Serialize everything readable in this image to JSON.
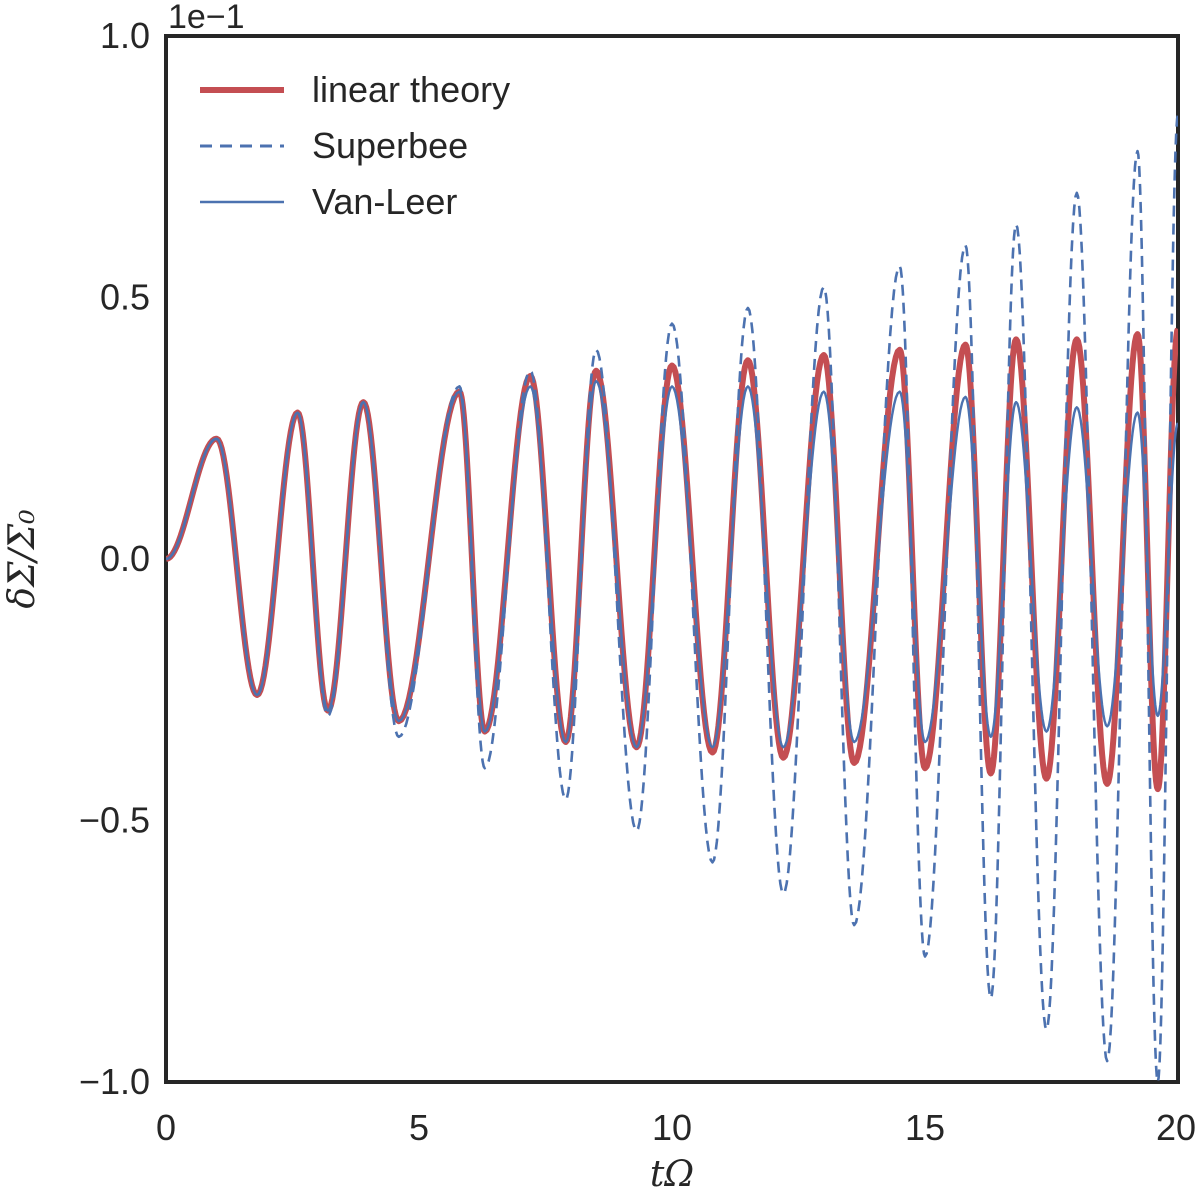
{
  "chart_data": {
    "type": "line",
    "title": "",
    "xlabel": "tΩ",
    "ylabel": "δΣ/Σ₀",
    "xlim": [
      0,
      20
    ],
    "ylim": [
      -1.0,
      1.0
    ],
    "y_offset_text": "1e−1",
    "xticks": [
      0,
      5,
      10,
      15,
      20
    ],
    "xtick_labels": [
      "0",
      "5",
      "10",
      "15",
      "20"
    ],
    "yticks": [
      -1.0,
      -0.5,
      0.0,
      0.5,
      1.0
    ],
    "ytick_labels": [
      "−1.0",
      "−0.5",
      "0.0",
      "0.5",
      "1.0"
    ],
    "grid": false,
    "legend_position": "top-left",
    "series": [
      {
        "name": "linear theory",
        "style": "solid-thick",
        "color": "#c44e52",
        "peaks": [
          [
            1.0,
            0.23
          ],
          [
            2.6,
            0.28
          ],
          [
            3.9,
            0.3
          ],
          [
            5.8,
            0.32
          ],
          [
            7.2,
            0.35
          ],
          [
            8.5,
            0.36
          ],
          [
            10.0,
            0.37
          ],
          [
            11.5,
            0.38
          ],
          [
            13.0,
            0.39
          ],
          [
            14.5,
            0.4
          ],
          [
            15.8,
            0.41
          ],
          [
            16.8,
            0.42
          ],
          [
            18.0,
            0.42
          ],
          [
            19.2,
            0.43
          ],
          [
            20.0,
            0.44
          ]
        ],
        "troughs": [
          [
            1.8,
            -0.26
          ],
          [
            3.2,
            -0.29
          ],
          [
            4.6,
            -0.31
          ],
          [
            6.3,
            -0.33
          ],
          [
            7.9,
            -0.35
          ],
          [
            9.3,
            -0.36
          ],
          [
            10.8,
            -0.37
          ],
          [
            12.2,
            -0.38
          ],
          [
            13.6,
            -0.39
          ],
          [
            15.0,
            -0.4
          ],
          [
            16.3,
            -0.41
          ],
          [
            17.4,
            -0.42
          ],
          [
            18.6,
            -0.43
          ],
          [
            19.6,
            -0.44
          ]
        ]
      },
      {
        "name": "Superbee",
        "style": "dashed",
        "color": "#4c72b0",
        "peaks": [
          [
            1.0,
            0.23
          ],
          [
            2.6,
            0.28
          ],
          [
            3.9,
            0.3
          ],
          [
            5.8,
            0.33
          ],
          [
            7.2,
            0.36
          ],
          [
            8.5,
            0.4
          ],
          [
            10.0,
            0.45
          ],
          [
            11.5,
            0.48
          ],
          [
            13.0,
            0.52
          ],
          [
            14.5,
            0.56
          ],
          [
            15.8,
            0.6
          ],
          [
            16.8,
            0.64
          ],
          [
            18.0,
            0.7
          ],
          [
            19.2,
            0.78
          ],
          [
            20.0,
            0.85
          ]
        ],
        "troughs": [
          [
            1.8,
            -0.26
          ],
          [
            3.2,
            -0.3
          ],
          [
            4.6,
            -0.34
          ],
          [
            6.3,
            -0.4
          ],
          [
            7.9,
            -0.46
          ],
          [
            9.3,
            -0.52
          ],
          [
            10.8,
            -0.58
          ],
          [
            12.2,
            -0.64
          ],
          [
            13.6,
            -0.7
          ],
          [
            15.0,
            -0.76
          ],
          [
            16.3,
            -0.84
          ],
          [
            17.4,
            -0.9
          ],
          [
            18.6,
            -0.96
          ],
          [
            19.6,
            -1.0
          ]
        ]
      },
      {
        "name": "Van-Leer",
        "style": "solid-thin",
        "color": "#4c72b0",
        "peaks": [
          [
            1.0,
            0.23
          ],
          [
            2.6,
            0.28
          ],
          [
            3.9,
            0.3
          ],
          [
            5.8,
            0.32
          ],
          [
            7.2,
            0.33
          ],
          [
            8.5,
            0.34
          ],
          [
            10.0,
            0.33
          ],
          [
            11.5,
            0.33
          ],
          [
            13.0,
            0.32
          ],
          [
            14.5,
            0.32
          ],
          [
            15.8,
            0.31
          ],
          [
            16.8,
            0.3
          ],
          [
            18.0,
            0.29
          ],
          [
            19.2,
            0.28
          ],
          [
            20.0,
            0.26
          ]
        ],
        "troughs": [
          [
            1.8,
            -0.26
          ],
          [
            3.2,
            -0.29
          ],
          [
            4.6,
            -0.31
          ],
          [
            6.3,
            -0.33
          ],
          [
            7.9,
            -0.35
          ],
          [
            9.3,
            -0.36
          ],
          [
            10.8,
            -0.36
          ],
          [
            12.2,
            -0.36
          ],
          [
            13.6,
            -0.35
          ],
          [
            15.0,
            -0.35
          ],
          [
            16.3,
            -0.34
          ],
          [
            17.4,
            -0.33
          ],
          [
            18.6,
            -0.32
          ],
          [
            19.6,
            -0.3
          ]
        ]
      }
    ]
  }
}
